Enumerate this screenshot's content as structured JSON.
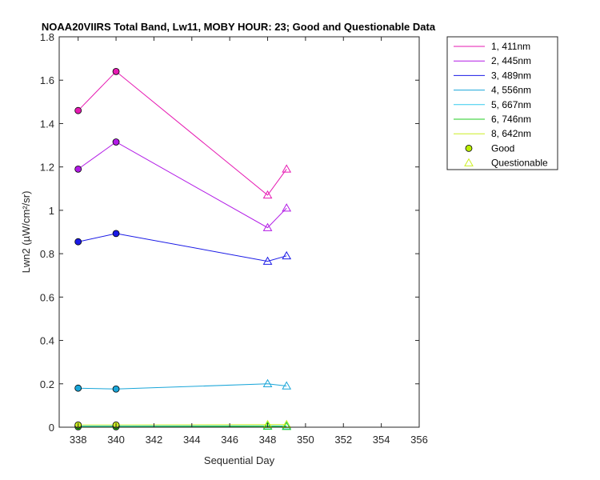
{
  "chart_data": {
    "type": "line",
    "title": "NOAA20VIIRS Total Band, Lw11, MOBY HOUR: 23;  Good and Questionable Data",
    "xlabel": "Sequential Day",
    "ylabel": "Lwn2 (µW/cm²/sr)",
    "xlim": [
      337,
      356
    ],
    "ylim": [
      0,
      1.8
    ],
    "xticks": [
      338,
      340,
      342,
      344,
      346,
      348,
      350,
      352,
      354,
      356
    ],
    "yticks": [
      0,
      0.2,
      0.4,
      0.6,
      0.8,
      1,
      1.2,
      1.4,
      1.6,
      1.8
    ],
    "ytick_labels": [
      "0",
      "0.2",
      "0.4",
      "0.6",
      "0.8",
      "1",
      "1.2",
      "1.4",
      "1.6",
      "1.8"
    ],
    "grid": false,
    "legend_placement": "outside-top-right",
    "series": [
      {
        "name": "1, 411nm",
        "color": "#e619b2",
        "points": [
          [
            338,
            1.46,
            "good"
          ],
          [
            340,
            1.64,
            "good"
          ],
          [
            348,
            1.07,
            "questionable"
          ],
          [
            349,
            1.19,
            "questionable"
          ]
        ]
      },
      {
        "name": "2, 445nm",
        "color": "#b21ae6",
        "points": [
          [
            338,
            1.19,
            "good"
          ],
          [
            340,
            1.315,
            "good"
          ],
          [
            348,
            0.92,
            "questionable"
          ],
          [
            349,
            1.01,
            "questionable"
          ]
        ]
      },
      {
        "name": "3, 489nm",
        "color": "#1a1ae6",
        "points": [
          [
            338,
            0.855,
            "good"
          ],
          [
            340,
            0.893,
            "good"
          ],
          [
            348,
            0.765,
            "questionable"
          ],
          [
            349,
            0.79,
            "questionable"
          ]
        ]
      },
      {
        "name": "4, 556nm",
        "color": "#1aa6d9",
        "points": [
          [
            338,
            0.18,
            "good"
          ],
          [
            340,
            0.176,
            "good"
          ],
          [
            348,
            0.2,
            "questionable"
          ],
          [
            349,
            0.19,
            "questionable"
          ]
        ]
      },
      {
        "name": "5, 667nm",
        "color": "#33ccee",
        "points": [
          [
            338,
            0.006,
            "good"
          ],
          [
            340,
            0.006,
            "good"
          ],
          [
            348,
            0.006,
            "questionable"
          ],
          [
            349,
            0.006,
            "questionable"
          ]
        ]
      },
      {
        "name": "6, 746nm",
        "color": "#22cc22",
        "points": [
          [
            338,
            0.002,
            "good"
          ],
          [
            340,
            0.002,
            "good"
          ],
          [
            348,
            0.004,
            "questionable"
          ],
          [
            349,
            0.003,
            "questionable"
          ]
        ]
      },
      {
        "name": "8, 642nm",
        "color": "#ccee22",
        "points": [
          [
            338,
            0.01,
            "good"
          ],
          [
            340,
            0.01,
            "good"
          ],
          [
            348,
            0.012,
            "questionable"
          ],
          [
            349,
            0.012,
            "questionable"
          ]
        ]
      }
    ],
    "marker_legend": [
      {
        "label": "Good",
        "marker": "circle",
        "color": "#bbee00"
      },
      {
        "label": "Questionable",
        "marker": "triangle",
        "color": "#ccee22"
      }
    ]
  }
}
